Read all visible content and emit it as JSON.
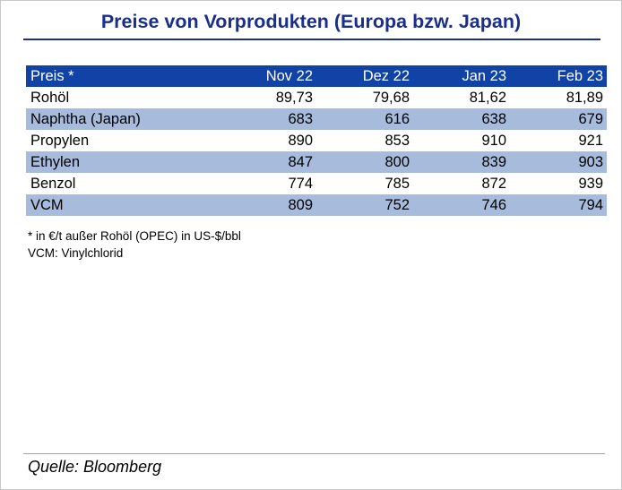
{
  "page": {
    "title": "Preise von Vorprodukten (Europa bzw. Japan)"
  },
  "table": {
    "header": {
      "label": "Preis *",
      "col1": "Nov 22",
      "col2": "Dez 22",
      "col3": "Jan 23",
      "col4": "Feb 23"
    },
    "rows": [
      {
        "label": "Rohöl",
        "values": [
          "89,73",
          "79,68",
          "81,62",
          "81,89"
        ]
      },
      {
        "label": "Naphtha (Japan)",
        "values": [
          "683",
          "616",
          "638",
          "679"
        ]
      },
      {
        "label": "Propylen",
        "values": [
          "890",
          "853",
          "910",
          "921"
        ]
      },
      {
        "label": "Ethylen",
        "values": [
          "847",
          "800",
          "839",
          "903"
        ]
      },
      {
        "label": "Benzol",
        "values": [
          "774",
          "785",
          "872",
          "939"
        ]
      },
      {
        "label": "VCM",
        "values": [
          "809",
          "752",
          "746",
          "794"
        ]
      }
    ]
  },
  "footnotes": {
    "line1": "* in €/t außer Rohöl (OPEC) in US-$/bbl",
    "line2": "VCM: Vinylchlorid"
  },
  "source": "Quelle: Bloomberg",
  "colors": {
    "title_blue": "#1a2e8c",
    "header_blue": "#1043a5",
    "row_light_blue": "#a7bbdc",
    "rule_gray": "#a3a3a3"
  },
  "chart_data": {
    "type": "table",
    "title": "Preise von Vorprodukten (Europa bzw. Japan)",
    "columns": [
      "Preis *",
      "Nov 22",
      "Dez 22",
      "Jan 23",
      "Feb 23"
    ],
    "rows": [
      {
        "label": "Rohöl",
        "values": [
          89.73,
          79.68,
          81.62,
          81.89
        ]
      },
      {
        "label": "Naphtha (Japan)",
        "values": [
          683,
          616,
          638,
          679
        ]
      },
      {
        "label": "Propylen",
        "values": [
          890,
          853,
          910,
          921
        ]
      },
      {
        "label": "Ethylen",
        "values": [
          847,
          800,
          839,
          903
        ]
      },
      {
        "label": "Benzol",
        "values": [
          774,
          785,
          872,
          939
        ]
      },
      {
        "label": "VCM",
        "values": [
          809,
          752,
          746,
          794
        ]
      }
    ],
    "footnotes": [
      "* in €/t außer Rohöl (OPEC) in US-$/bbl",
      "VCM: Vinylchlorid"
    ],
    "source": "Quelle: Bloomberg",
    "layout_hints": "header row dark blue with white text; data rows alternate white and light blue; numeric columns right-aligned; decimal comma formatting"
  }
}
